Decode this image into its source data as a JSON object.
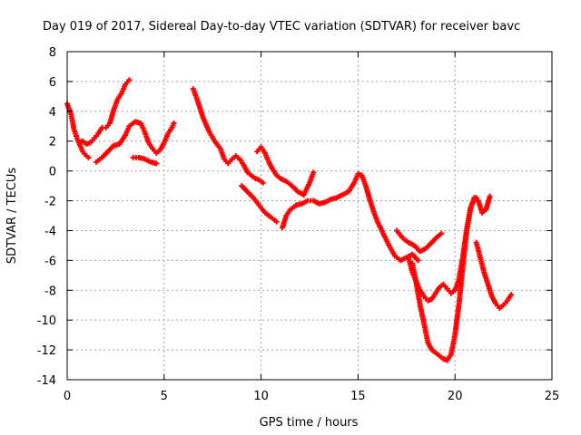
{
  "chart_data": {
    "type": "scatter",
    "title": "Day 019 of 2017, Sidereal Day-to-day VTEC variation (SDTVAR) for receiver bavc",
    "xlabel": "GPS time / hours",
    "ylabel": "SDTVAR / TECUs",
    "xlim": [
      0,
      25
    ],
    "ylim": [
      -14,
      8
    ],
    "xticks": [
      0,
      5,
      10,
      15,
      20,
      25
    ],
    "yticks": [
      -14,
      -12,
      -10,
      -8,
      -6,
      -4,
      -2,
      0,
      2,
      4,
      6,
      8
    ],
    "grid": true,
    "marker_color": "#ff0000",
    "series": [
      {
        "x": [
          0.0,
          0.2,
          0.35,
          0.5,
          0.6,
          0.8,
          1.0,
          1.2,
          1.4,
          1.6,
          1.8,
          2.0,
          2.2,
          2.4,
          2.6,
          2.8,
          3.0,
          3.2
        ],
        "y": [
          4.5,
          3.8,
          2.8,
          2.2,
          1.9,
          2.0,
          1.8,
          1.9,
          2.2,
          2.5,
          2.9,
          2.9,
          3.2,
          4.1,
          4.8,
          5.2,
          5.8,
          6.1
        ]
      },
      {
        "x": [
          0.6,
          0.8,
          1.0,
          1.1
        ],
        "y": [
          1.9,
          1.3,
          1.0,
          0.9
        ]
      },
      {
        "x": [
          1.5,
          1.8,
          2.1,
          2.4,
          2.7,
          3.0,
          3.2,
          3.5,
          3.8,
          4.0,
          4.2,
          4.4,
          4.6,
          4.8,
          5.0,
          5.2,
          5.4,
          5.5
        ],
        "y": [
          0.6,
          0.9,
          1.3,
          1.7,
          1.8,
          2.4,
          3.0,
          3.3,
          3.2,
          2.6,
          1.9,
          1.5,
          1.2,
          1.4,
          1.9,
          2.5,
          2.9,
          3.2
        ]
      },
      {
        "x": [
          3.4,
          3.7,
          4.0,
          4.3,
          4.6
        ],
        "y": [
          0.9,
          0.9,
          0.8,
          0.6,
          0.5
        ]
      },
      {
        "x": [
          6.5,
          6.7,
          7.0,
          7.3,
          7.6,
          7.9,
          8.1,
          8.3,
          8.5,
          8.7,
          8.9,
          9.1,
          9.3,
          9.5,
          9.7,
          9.9,
          10.1
        ],
        "y": [
          5.5,
          4.8,
          3.6,
          2.7,
          2.0,
          1.5,
          0.8,
          0.5,
          0.8,
          1.0,
          0.8,
          0.4,
          -0.1,
          -0.3,
          -0.5,
          -0.6,
          -0.8
        ]
      },
      {
        "x": [
          9.8,
          10.0,
          10.2,
          10.4,
          10.6,
          10.8,
          11.0,
          11.3,
          11.6,
          11.9,
          12.2,
          12.5,
          12.7
        ],
        "y": [
          1.3,
          1.6,
          1.2,
          0.6,
          0.1,
          -0.3,
          -0.5,
          -0.7,
          -1.0,
          -1.4,
          -1.6,
          -0.8,
          -0.1
        ]
      },
      {
        "x": [
          9.0,
          9.3,
          9.6,
          9.9,
          10.2,
          10.5,
          10.8
        ],
        "y": [
          -1.0,
          -1.4,
          -1.8,
          -2.3,
          -2.8,
          -3.1,
          -3.4
        ]
      },
      {
        "x": [
          11.1,
          11.3,
          11.5,
          11.8,
          12.1,
          12.4,
          12.7,
          13.0,
          13.3,
          13.6,
          13.9,
          14.2,
          14.5,
          14.8,
          15.0,
          15.2,
          15.4,
          15.6,
          15.8,
          16.0,
          16.3,
          16.6,
          16.9,
          17.2,
          17.5,
          17.8,
          18.1
        ],
        "y": [
          -3.8,
          -3.0,
          -2.6,
          -2.3,
          -2.2,
          -2.0,
          -2.0,
          -2.2,
          -2.1,
          -1.9,
          -1.8,
          -1.6,
          -1.4,
          -0.8,
          -0.2,
          -0.3,
          -1.0,
          -1.9,
          -2.7,
          -3.4,
          -4.2,
          -5.0,
          -5.7,
          -6.0,
          -5.8,
          -5.6,
          -6.0
        ]
      },
      {
        "x": [
          17.0,
          17.3,
          17.6,
          17.9,
          18.2,
          18.5,
          18.8,
          19.1,
          19.3
        ],
        "y": [
          -4.0,
          -4.5,
          -4.8,
          -5.0,
          -5.4,
          -5.2,
          -4.8,
          -4.4,
          -4.2
        ]
      },
      {
        "x": [
          17.6,
          17.8,
          18.0,
          18.2,
          18.4,
          18.6,
          18.8,
          19.0,
          19.2,
          19.4,
          19.6,
          19.8,
          20.0,
          20.2,
          20.4,
          20.6,
          20.8,
          21.0,
          21.2,
          21.4,
          21.6,
          21.8
        ],
        "y": [
          -5.8,
          -6.8,
          -7.4,
          -8.0,
          -8.4,
          -8.7,
          -8.6,
          -8.2,
          -7.8,
          -7.6,
          -7.9,
          -8.2,
          -8.0,
          -7.3,
          -5.8,
          -4.0,
          -2.5,
          -1.8,
          -2.0,
          -2.8,
          -2.6,
          -1.7
        ]
      },
      {
        "x": [
          17.8,
          18.0,
          18.2,
          18.4,
          18.6,
          18.8,
          19.0,
          19.2,
          19.4,
          19.6,
          19.8,
          20.0,
          20.2,
          20.4,
          20.6,
          20.8,
          21.0,
          21.1
        ],
        "y": [
          -6.2,
          -7.5,
          -9.0,
          -10.2,
          -11.5,
          -12.0,
          -12.2,
          -12.4,
          -12.6,
          -12.7,
          -12.3,
          -11.0,
          -9.0,
          -6.5,
          -4.0,
          -2.5,
          -1.8,
          -1.8
        ]
      },
      {
        "x": [
          21.1,
          21.3,
          21.5,
          21.7,
          21.9,
          22.1,
          22.3,
          22.5,
          22.7,
          22.9
        ],
        "y": [
          -4.8,
          -5.8,
          -6.8,
          -7.6,
          -8.4,
          -8.9,
          -9.2,
          -9.0,
          -8.7,
          -8.3
        ]
      }
    ]
  }
}
